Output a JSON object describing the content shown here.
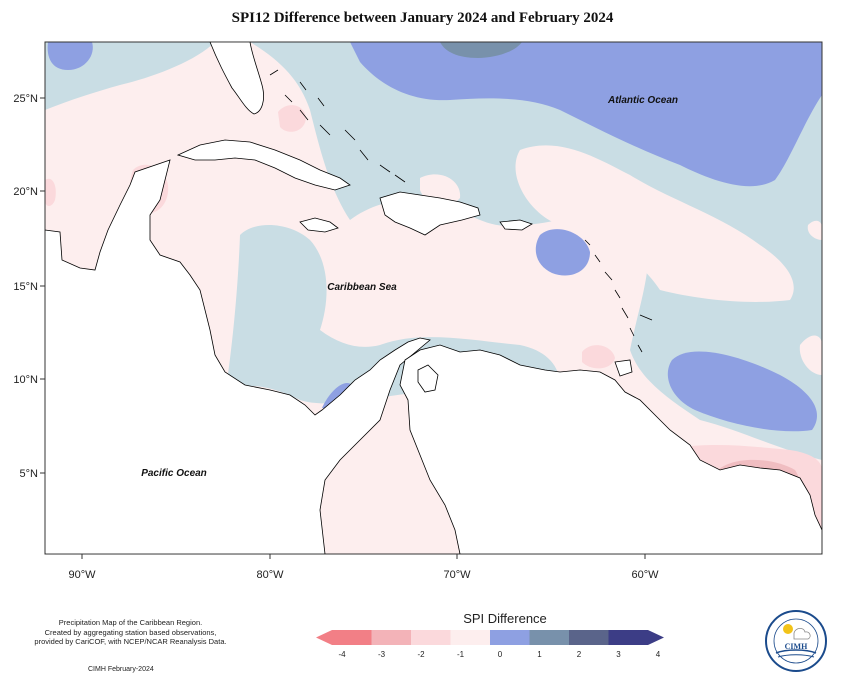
{
  "title": "SPI12 Difference between January 2024 and February 2024",
  "axes": {
    "lat_labels": [
      "25°N",
      "20°N",
      "15°N",
      "10°N",
      "5°N"
    ],
    "lon_labels": [
      "90°W",
      "80°W",
      "70°W",
      "60°W"
    ]
  },
  "places": {
    "atlantic": "Atlantic Ocean",
    "caribbean": "Caribbean Sea",
    "pacific": "Pacific Ocean"
  },
  "legend": {
    "title": "SPI Difference",
    "labels": [
      "-4",
      "-3",
      "-2",
      "-1",
      "0",
      "1",
      "2",
      "3",
      "4"
    ],
    "colors": [
      "#f27f86",
      "#f3b3b8",
      "#fbd9dc",
      "#fdeeee",
      "#c9dde4",
      "#8ea0e2",
      "#7891ab",
      "#5a648a",
      "#3c3d86"
    ]
  },
  "credit": {
    "line1": "Precipitation Map of the Caribbean Region.",
    "line2": "Created by aggregating station based observations,",
    "line3": "provided by CariCOF, with NCEP/NCAR Reanalysis Data.",
    "date": "CIMH February-2024"
  },
  "logo": {
    "text": "CIMH",
    "name": "Caribbean Institute for Meteorology and Hydrology"
  }
}
